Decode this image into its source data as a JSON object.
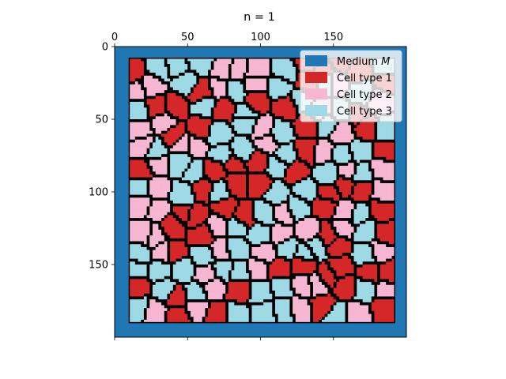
{
  "chart_data": {
    "type": "heatmap",
    "title": "n = 1",
    "xlabel": "",
    "ylabel": "",
    "xlim": [
      0,
      200
    ],
    "ylim": [
      200,
      0
    ],
    "x_axis_position": "top",
    "y_axis_inverted": true,
    "x_ticks": [
      0,
      50,
      100,
      150
    ],
    "y_ticks": [
      0,
      50,
      100,
      150
    ],
    "x_tick_labels": [
      "0",
      "50",
      "100",
      "150"
    ],
    "y_tick_labels": [
      "0",
      "50",
      "100",
      "150"
    ],
    "grid": false,
    "legend_position": "top-right",
    "categories": [
      {
        "label": "Medium M",
        "label_main": "Medium ",
        "label_italic": "M",
        "color": "#1f77b4"
      },
      {
        "label": "Cell type 1",
        "color": "#d62728"
      },
      {
        "label": "Cell type 2",
        "color": "#f7b6d2"
      },
      {
        "label": "Cell type 3",
        "color": "#9edae5"
      }
    ],
    "tissue_extent": {
      "x": [
        10,
        192
      ],
      "y": [
        8,
        190
      ]
    },
    "cell_count_approx": 180
  }
}
